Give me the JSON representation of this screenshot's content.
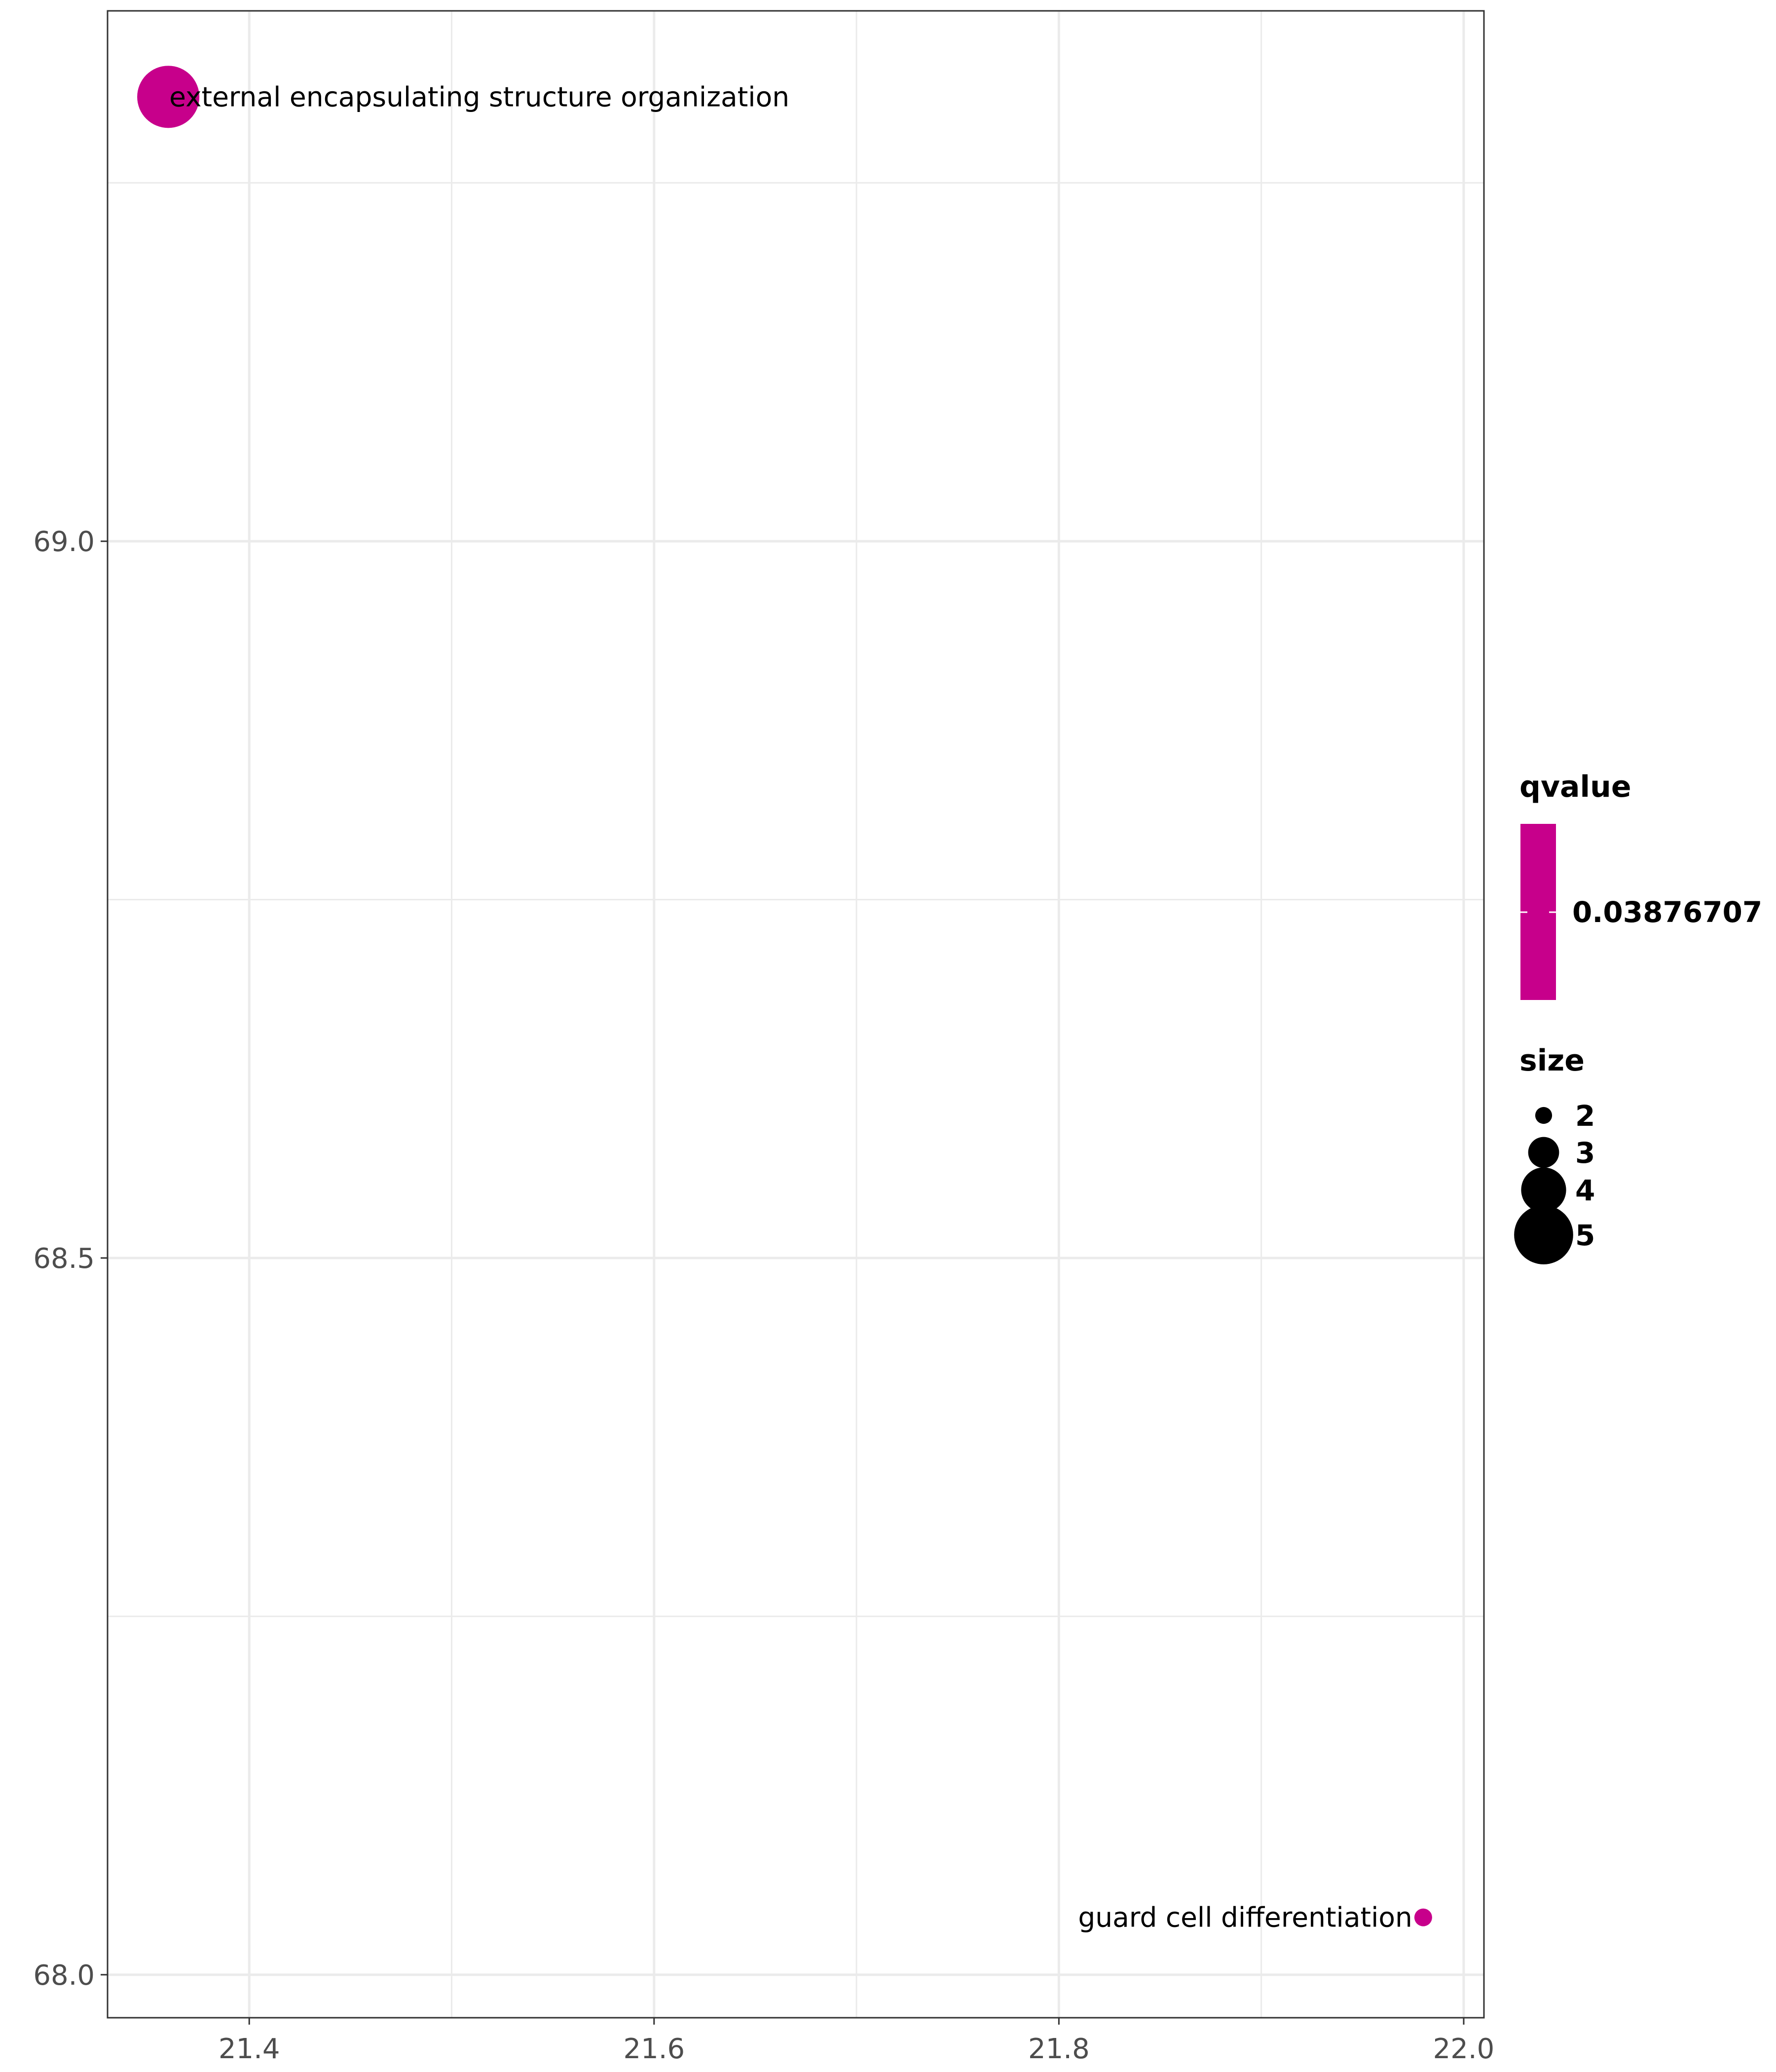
{
  "chart_data": {
    "type": "scatter",
    "title": "",
    "xlabel": "",
    "ylabel": "",
    "xlim": [
      21.33,
      22.01
    ],
    "ylim": [
      67.97,
      69.37
    ],
    "x_ticks": [
      21.4,
      21.6,
      21.8,
      22.0
    ],
    "x_tick_labels": [
      "21.4",
      "21.6",
      "21.8",
      "22.0"
    ],
    "x_minor": [
      21.5,
      21.7,
      21.9
    ],
    "y_ticks": [
      68.0,
      68.5,
      69.0
    ],
    "y_tick_labels": [
      "68.0",
      "68.5",
      "69.0"
    ],
    "y_minor": [
      68.25,
      68.75,
      69.25
    ],
    "grid": true,
    "points": [
      {
        "label": "external encapsulating structure organization",
        "x": 21.36,
        "y": 69.31,
        "size": 5,
        "qvalue": 0.03876707
      },
      {
        "label": "guard cell differentiation",
        "x": 21.98,
        "y": 68.04,
        "size": 2,
        "qvalue": 0.03876707
      }
    ],
    "color_legend": {
      "title": "qvalue",
      "label": "0.03876707",
      "color": "#c7008b",
      "placement": "right"
    },
    "size_legend": {
      "title": "size",
      "values": [
        2,
        3,
        4,
        5
      ],
      "labels": [
        "2",
        "3",
        "4",
        "5"
      ],
      "placement": "right"
    }
  },
  "colors": {
    "point": "#c7008b",
    "grid": "#ebebeb",
    "panel_border": "#333333",
    "tick_text": "#4d4d4d"
  }
}
